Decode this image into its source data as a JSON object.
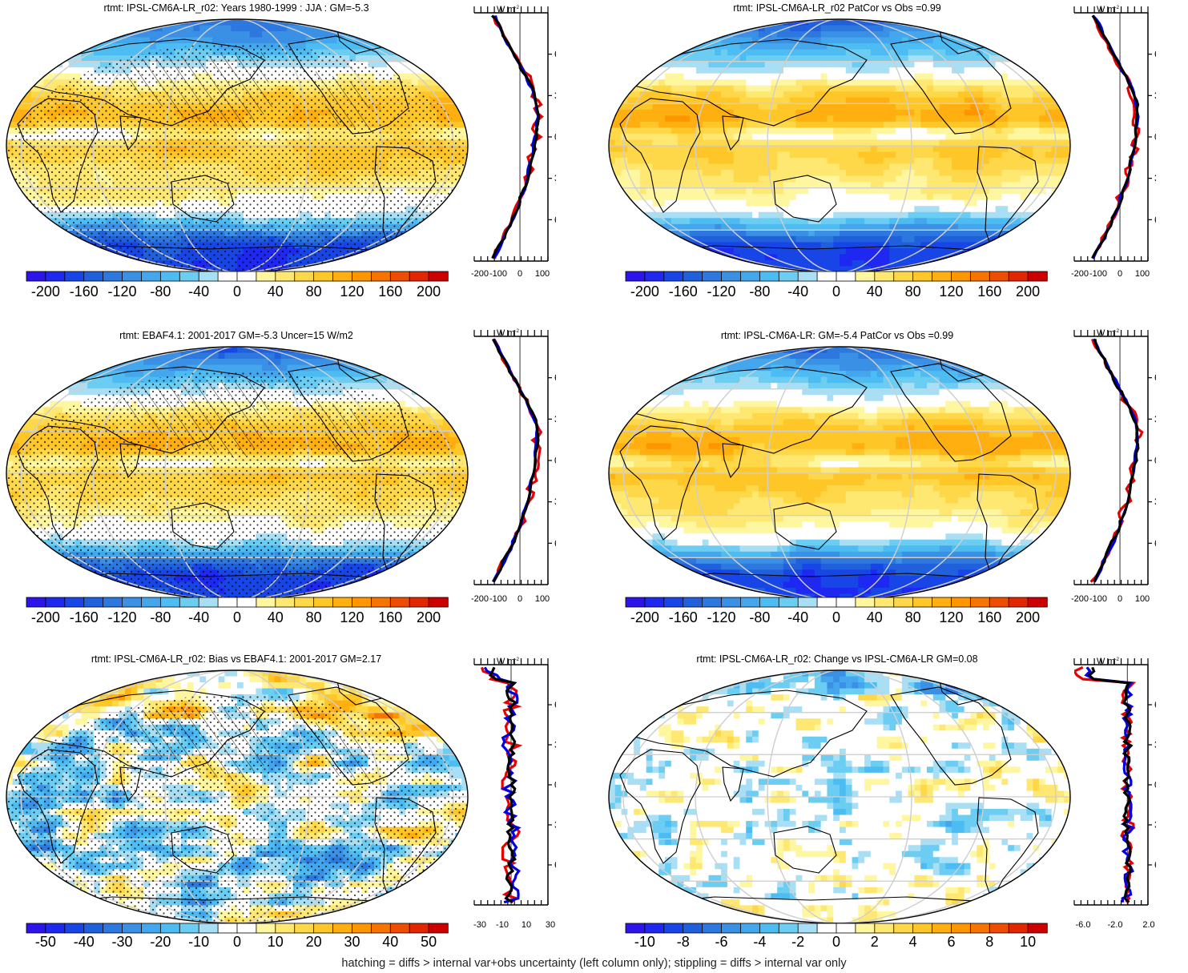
{
  "footer": "hatching = diffs > internal var+obs uncertainty (left column only); stippling = diffs > internal var only",
  "profile_unit": "W m",
  "profile_unit_exp": "-2",
  "lat_labels": [
    "60N",
    "30N",
    "0",
    "30S",
    "60S"
  ],
  "colors": {
    "blue_end": "#1e1ee6",
    "white_mid": "#ffffff",
    "red_end": "#d00000",
    "model_line": "#e60000",
    "obs_line": "#0000e6",
    "ref_line": "#000000"
  },
  "panels": [
    {
      "id": "p1",
      "title": "rtmt: IPSL-CM6A-LR_r02: Years 1980-1999 : JJA : GM=-5.3",
      "colorbar_labels": [
        "-200",
        "-160",
        "-120",
        "-80",
        "-40",
        "0",
        "40",
        "80",
        "120",
        "160",
        "200"
      ],
      "profile_ticks": [
        "-200",
        "-100",
        "0",
        "100"
      ],
      "field": "rad",
      "hatch": true,
      "stipple": true
    },
    {
      "id": "p2",
      "title": "rtmt: IPSL-CM6A-LR_r02 PatCor vs Obs =0.99",
      "colorbar_labels": [
        "-200",
        "-160",
        "-120",
        "-80",
        "-40",
        "0",
        "40",
        "80",
        "120",
        "160",
        "200"
      ],
      "profile_ticks": [
        "-200",
        "-100",
        "0",
        "100"
      ],
      "field": "rad",
      "hatch": false,
      "stipple": false
    },
    {
      "id": "p3",
      "title": "rtmt: EBAF4.1: 2001-2017 GM=-5.3 Uncer=15 W/m2",
      "colorbar_labels": [
        "-200",
        "-160",
        "-120",
        "-80",
        "-40",
        "0",
        "40",
        "80",
        "120",
        "160",
        "200"
      ],
      "profile_ticks": [
        "-200",
        "-100",
        "0",
        "100"
      ],
      "field": "rad",
      "hatch": true,
      "stipple": true
    },
    {
      "id": "p4",
      "title": "rtmt: IPSL-CM6A-LR: GM=-5.4 PatCor vs Obs =0.99",
      "colorbar_labels": [
        "-200",
        "-160",
        "-120",
        "-80",
        "-40",
        "0",
        "40",
        "80",
        "120",
        "160",
        "200"
      ],
      "profile_ticks": [
        "-200",
        "-100",
        "0",
        "100"
      ],
      "field": "rad",
      "hatch": false,
      "stipple": false
    },
    {
      "id": "p5",
      "title": "rtmt: IPSL-CM6A-LR_r02: Bias vs EBAF4.1: 2001-2017 GM=2.17",
      "colorbar_labels": [
        "-50",
        "-40",
        "-30",
        "-20",
        "-10",
        "0",
        "10",
        "20",
        "30",
        "40",
        "50"
      ],
      "profile_ticks": [
        "-30",
        "-10",
        "10",
        "30"
      ],
      "field": "bias",
      "hatch": true,
      "stipple": true
    },
    {
      "id": "p6",
      "title": "rtmt: IPSL-CM6A-LR_r02: Change vs IPSL-CM6A-LR GM=0.08",
      "colorbar_labels": [
        "-10",
        "-8",
        "-6",
        "-4",
        "-2",
        "0",
        "2",
        "4",
        "6",
        "8",
        "10"
      ],
      "profile_ticks": [
        "-6.0",
        "-2.0",
        "2.0"
      ],
      "field": "change",
      "hatch": false,
      "stipple": false
    }
  ]
}
